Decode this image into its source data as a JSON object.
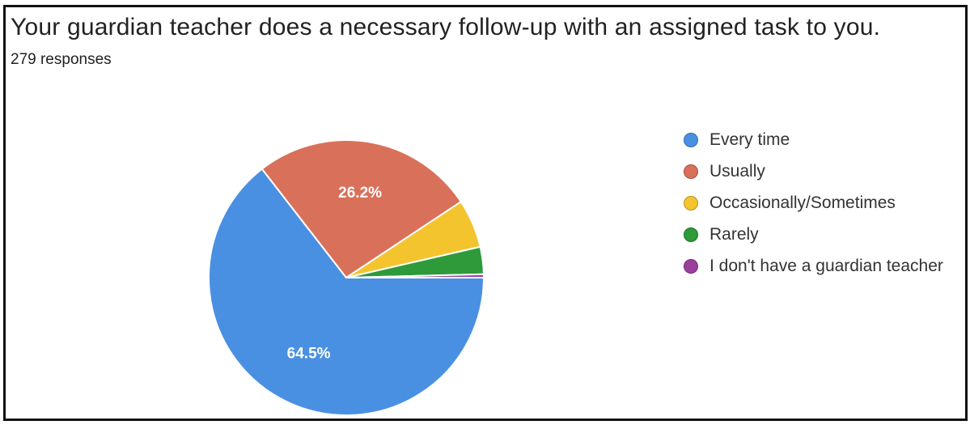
{
  "title": "Your guardian teacher does a necessary follow-up with an assigned task to you.",
  "subtitle": "279 responses",
  "chart_data": {
    "type": "pie",
    "title": "Your guardian teacher does a necessary follow-up with an assigned task to you.",
    "subtitle": "279 responses",
    "categories": [
      "Every time",
      "Usually",
      "Occasionally/Sometimes",
      "Rarely",
      "I don't have a guardian teacher"
    ],
    "values": [
      64.5,
      26.2,
      5.7,
      3.2,
      0.4
    ],
    "data_labels": [
      "64.5%",
      "26.2%",
      "",
      "",
      ""
    ],
    "colors": [
      "#4a90e2",
      "#d9705a",
      "#f4c42e",
      "#2e9a3a",
      "#9b3f9c"
    ],
    "legend_position": "right"
  }
}
